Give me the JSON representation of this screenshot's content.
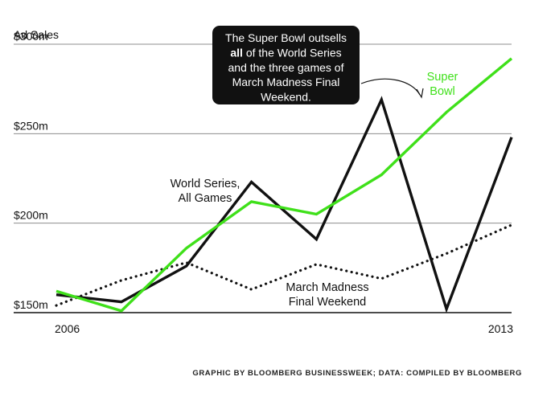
{
  "chart_data": {
    "type": "line",
    "ylabel": "Ad Sales",
    "x": [
      2006,
      2007,
      2008,
      2009,
      2010,
      2011,
      2012,
      2013
    ],
    "x_tick_labels": [
      "2006",
      "2013"
    ],
    "y_ticks": [
      150,
      200,
      250,
      300
    ],
    "y_tick_labels": [
      "$150m",
      "$200m",
      "$250m",
      "$300m"
    ],
    "ylim": [
      150,
      300
    ],
    "grid": "horizontal",
    "series": [
      {
        "name": "Super Bowl",
        "label_lines": [
          "Super",
          "Bowl"
        ],
        "color": "#3fe01a",
        "style": "solid",
        "values": [
          162,
          151,
          186,
          212,
          205,
          227,
          262,
          292
        ]
      },
      {
        "name": "World Series, All Games",
        "label_lines": [
          "World Series,",
          "All Games"
        ],
        "color": "#111111",
        "style": "solid",
        "values": [
          160,
          156,
          176,
          223,
          191,
          269,
          152,
          248
        ]
      },
      {
        "name": "March Madness Final Weekend",
        "label_lines": [
          "March Madness",
          "Final Weekend"
        ],
        "color": "#111111",
        "style": "dotted",
        "values": [
          154,
          168,
          178,
          163,
          177,
          169,
          183,
          199
        ]
      }
    ],
    "annotation": {
      "lines": [
        [
          {
            "t": "The Super Bowl outsells"
          }
        ],
        [
          {
            "t": "all",
            "bold": true
          },
          {
            "t": " of the World Series"
          }
        ],
        [
          {
            "t": "and the three games of"
          }
        ],
        [
          {
            "t": "March Madness Final"
          }
        ],
        [
          {
            "t": "Weekend."
          }
        ]
      ]
    },
    "credit": "GRAPHIC BY BLOOMBERG BUSINESSWEEK; DATA: COMPILED BY BLOOMBERG"
  }
}
